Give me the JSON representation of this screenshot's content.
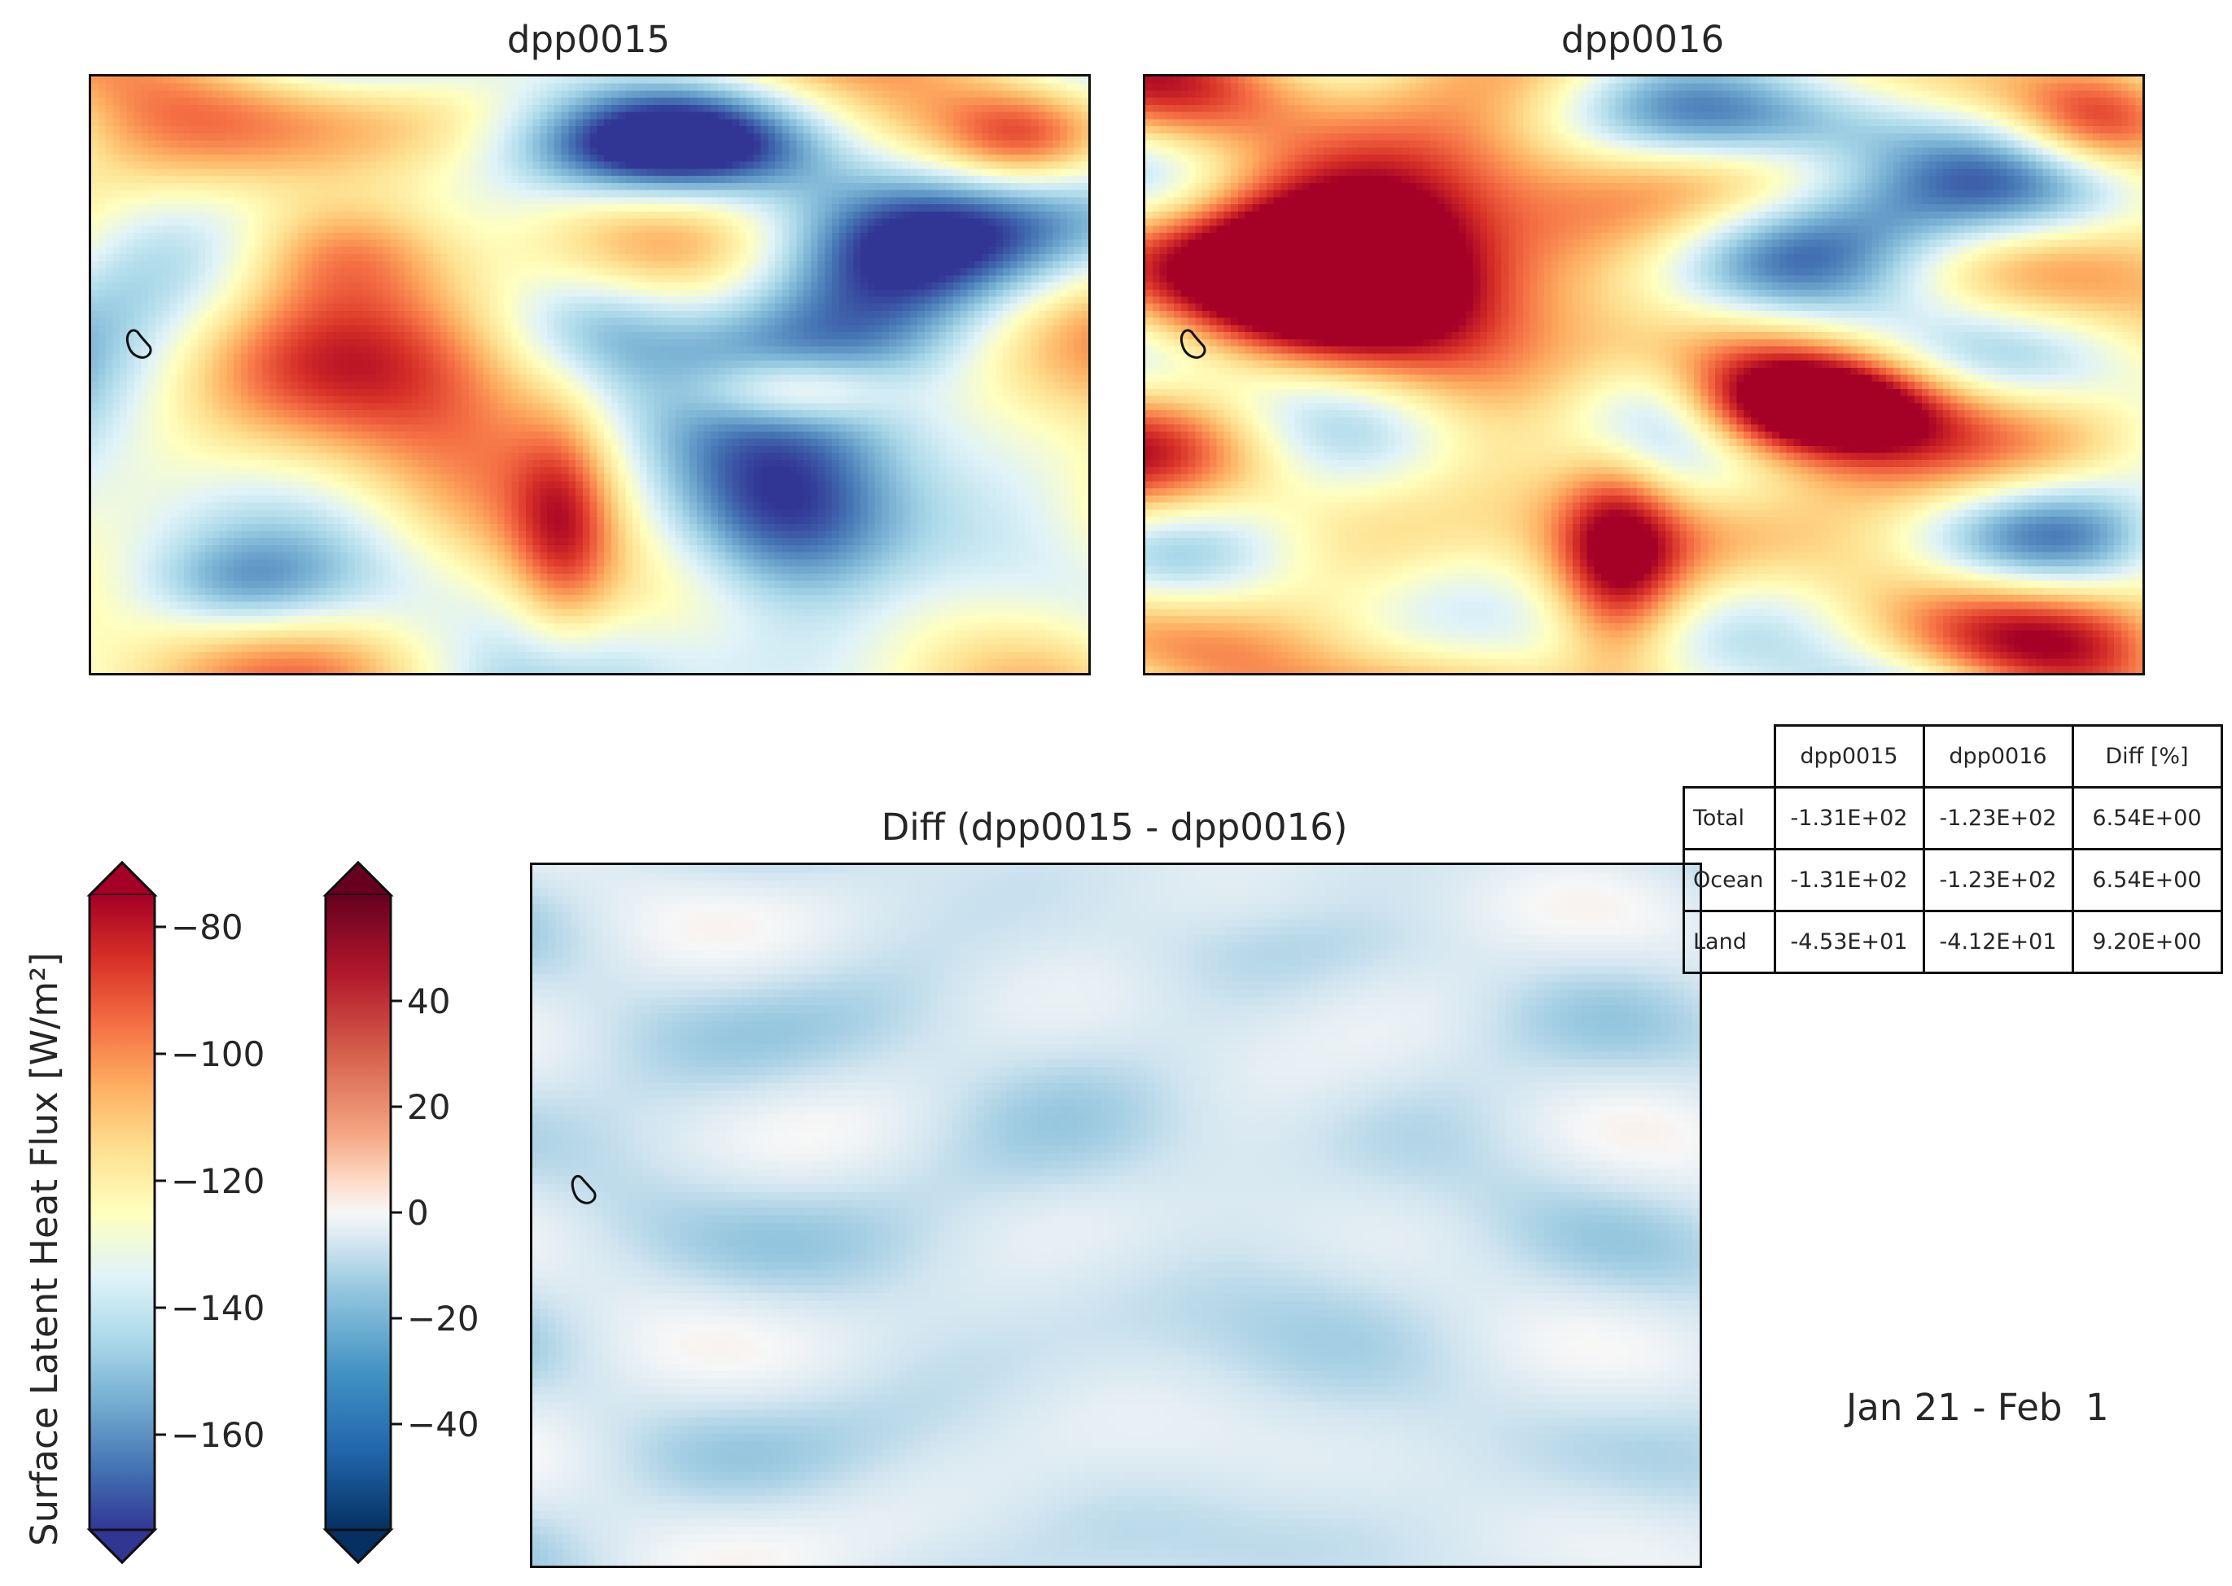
{
  "panels": {
    "left_title": "dpp0015",
    "right_title": "dpp0016",
    "diff_title": "Diff (dpp0015 - dpp0016)"
  },
  "colorbar_main": {
    "label": "Surface Latent Heat Flux [W/m²]",
    "colormap": "RdYlBu_r",
    "ticks": [
      "−80",
      "−100",
      "−120",
      "−140",
      "−160"
    ],
    "range": [
      -175,
      -75
    ],
    "extend": "both"
  },
  "colorbar_diff": {
    "colormap": "RdBu_r",
    "ticks": [
      "40",
      "20",
      "0",
      "−20",
      "−40"
    ],
    "range": [
      -60,
      60
    ],
    "extend": "both"
  },
  "stats_table": {
    "columns": [
      "dpp0015",
      "dpp0016",
      "Diff [%]"
    ],
    "rows": [
      {
        "label": "Total",
        "values": [
          "-1.31E+02",
          "-1.23E+02",
          "6.54E+00"
        ]
      },
      {
        "label": "Ocean",
        "values": [
          "-1.31E+02",
          "-1.23E+02",
          "6.54E+00"
        ]
      },
      {
        "label": "Land",
        "values": [
          "-4.53E+01",
          "-4.12E+01",
          "9.20E+00"
        ]
      }
    ]
  },
  "date_range": "Jan 21 - Feb  1",
  "chart_data": [
    {
      "type": "heatmap",
      "title": "dpp0015",
      "variable": "Surface Latent Heat Flux",
      "units": "W/m²",
      "range": [
        -175,
        -75
      ],
      "mean": -131
    },
    {
      "type": "heatmap",
      "title": "dpp0016",
      "variable": "Surface Latent Heat Flux",
      "units": "W/m²",
      "range": [
        -175,
        -75
      ],
      "mean": -123
    },
    {
      "type": "heatmap",
      "title": "Diff (dpp0015 - dpp0016)",
      "units": "W/m²",
      "range": [
        -60,
        60
      ]
    },
    {
      "type": "table",
      "columns": [
        "dpp0015",
        "dpp0016",
        "Diff [%]"
      ],
      "rows": [
        [
          "Total",
          -131,
          -123,
          6.54
        ],
        [
          "Ocean",
          -131,
          -123,
          6.54
        ],
        [
          "Land",
          -45.3,
          -41.2,
          9.2
        ]
      ]
    }
  ]
}
